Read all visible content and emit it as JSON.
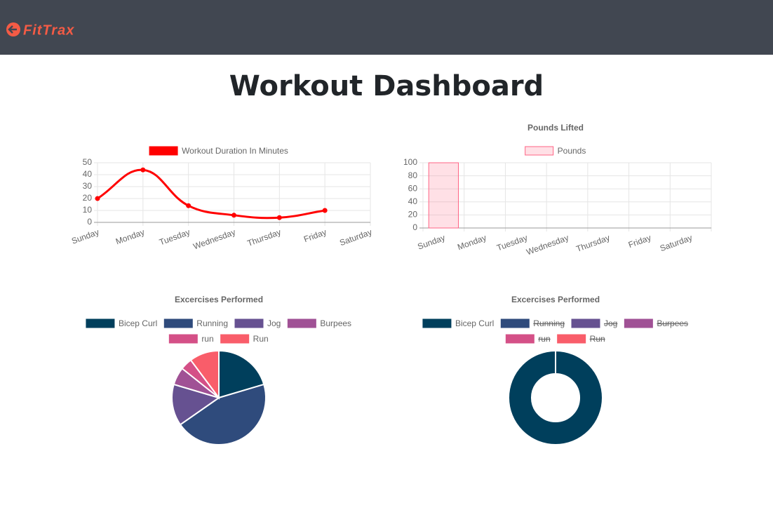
{
  "header": {
    "logo": "FitTrax"
  },
  "title": "Workout Dashboard",
  "chart_data": [
    {
      "type": "line",
      "categories": [
        "Sunday",
        "Monday",
        "Tuesday",
        "Wednesday",
        "Thursday",
        "Friday",
        "Saturday"
      ],
      "series": [
        {
          "name": "Workout Duration In Minutes",
          "color": "#ff0000",
          "values": [
            20,
            44,
            14,
            6,
            4,
            10,
            null
          ]
        }
      ],
      "ylim": [
        0,
        50
      ],
      "yticks": [
        0,
        10,
        20,
        30,
        40,
        50
      ],
      "grid": true
    },
    {
      "type": "bar",
      "title": "Pounds Lifted",
      "categories": [
        "Sunday",
        "Monday",
        "Tuesday",
        "Wednesday",
        "Thursday",
        "Friday",
        "Saturday"
      ],
      "series": [
        {
          "name": "Pounds",
          "color": "#ff6384",
          "values": [
            100,
            0,
            0,
            0,
            0,
            0,
            0
          ]
        }
      ],
      "ylim": [
        0,
        100
      ],
      "yticks": [
        0,
        20,
        40,
        60,
        80,
        100
      ],
      "grid": true
    },
    {
      "type": "pie",
      "title": "Excercises Performed",
      "categories": [
        "Bicep Curl",
        "Running",
        "Jog",
        "Burpees",
        "run",
        "Run"
      ],
      "values": [
        20,
        44,
        14,
        6,
        4,
        10
      ],
      "colors": [
        "#003f5c",
        "#2f4b7c",
        "#665191",
        "#a05195",
        "#d45087",
        "#f95d6a"
      ],
      "hidden": [
        false,
        false,
        false,
        false,
        false,
        false
      ]
    },
    {
      "type": "doughnut",
      "title": "Excercises Performed",
      "categories": [
        "Bicep Curl",
        "Running",
        "Jog",
        "Burpees",
        "run",
        "Run"
      ],
      "values": [
        20,
        44,
        14,
        6,
        4,
        10
      ],
      "colors": [
        "#003f5c",
        "#2f4b7c",
        "#665191",
        "#a05195",
        "#d45087",
        "#f95d6a"
      ],
      "hidden": [
        false,
        true,
        true,
        true,
        true,
        true
      ]
    }
  ]
}
